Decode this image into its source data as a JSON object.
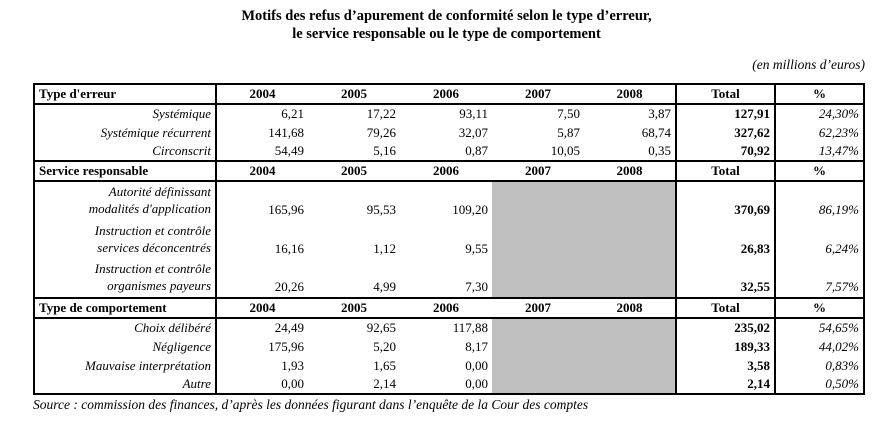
{
  "title": {
    "line1": "Motifs des refus d’apurement de conformité selon le type d’erreur,",
    "line2": "le service responsable ou le type de comportement"
  },
  "unit_note": "(en millions d’euros)",
  "source": "Source : commission des finances, d’après les données figurant dans l’enquête de la Cour des comptes",
  "colors": {
    "shaded_cell": "#c0c0c0",
    "border": "#000000",
    "background": "#ffffff",
    "text": "#000000"
  },
  "table": {
    "year_headers": [
      "2004",
      "2005",
      "2006",
      "2007",
      "2008"
    ],
    "total_header": "Total",
    "percent_header": "%",
    "shaded_value_column_indexes": [
      3,
      4
    ],
    "sections": [
      {
        "header": "Type d'erreur",
        "rows": [
          {
            "label": [
              "Systémique"
            ],
            "values": [
              "6,21",
              "17,22",
              "93,11",
              "7,50",
              "3,87"
            ],
            "shaded": false,
            "total": "127,91",
            "percent": "24,30%"
          },
          {
            "label": [
              "Systémique récurrent"
            ],
            "values": [
              "141,68",
              "79,26",
              "32,07",
              "5,87",
              "68,74"
            ],
            "shaded": false,
            "total": "327,62",
            "percent": "62,23%"
          },
          {
            "label": [
              "Circonscrit"
            ],
            "values": [
              "54,49",
              "5,16",
              "0,87",
              "10,05",
              "0,35"
            ],
            "shaded": false,
            "total": "70,92",
            "percent": "13,47%"
          }
        ]
      },
      {
        "header": "Service responsable",
        "rows": [
          {
            "label": [
              "Autorité définissant",
              "modalités d'application"
            ],
            "values": [
              "165,96",
              "95,53",
              "109,20",
              "",
              ""
            ],
            "shaded": true,
            "total": "370,69",
            "percent": "86,19%"
          },
          {
            "label": [
              "Instruction et contrôle",
              "services déconcentrés"
            ],
            "values": [
              "16,16",
              "1,12",
              "9,55",
              "",
              ""
            ],
            "shaded": true,
            "total": "26,83",
            "percent": "6,24%"
          },
          {
            "label": [
              "Instruction et contrôle",
              "organismes payeurs"
            ],
            "values": [
              "20,26",
              "4,99",
              "7,30",
              "",
              ""
            ],
            "shaded": true,
            "total": "32,55",
            "percent": "7,57%"
          }
        ]
      },
      {
        "header": "Type de comportement",
        "rows": [
          {
            "label": [
              "Choix délibéré"
            ],
            "values": [
              "24,49",
              "92,65",
              "117,88",
              "",
              ""
            ],
            "shaded": true,
            "total": "235,02",
            "percent": "54,65%"
          },
          {
            "label": [
              "Négligence"
            ],
            "values": [
              "175,96",
              "5,20",
              "8,17",
              "",
              ""
            ],
            "shaded": true,
            "total": "189,33",
            "percent": "44,02%"
          },
          {
            "label": [
              "Mauvaise interprétation"
            ],
            "values": [
              "1,93",
              "1,65",
              "0,00",
              "",
              ""
            ],
            "shaded": true,
            "total": "3,58",
            "percent": "0,83%"
          },
          {
            "label": [
              "Autre"
            ],
            "values": [
              "0,00",
              "2,14",
              "0,00",
              "",
              ""
            ],
            "shaded": true,
            "total": "2,14",
            "percent": "0,50%"
          }
        ]
      }
    ]
  }
}
